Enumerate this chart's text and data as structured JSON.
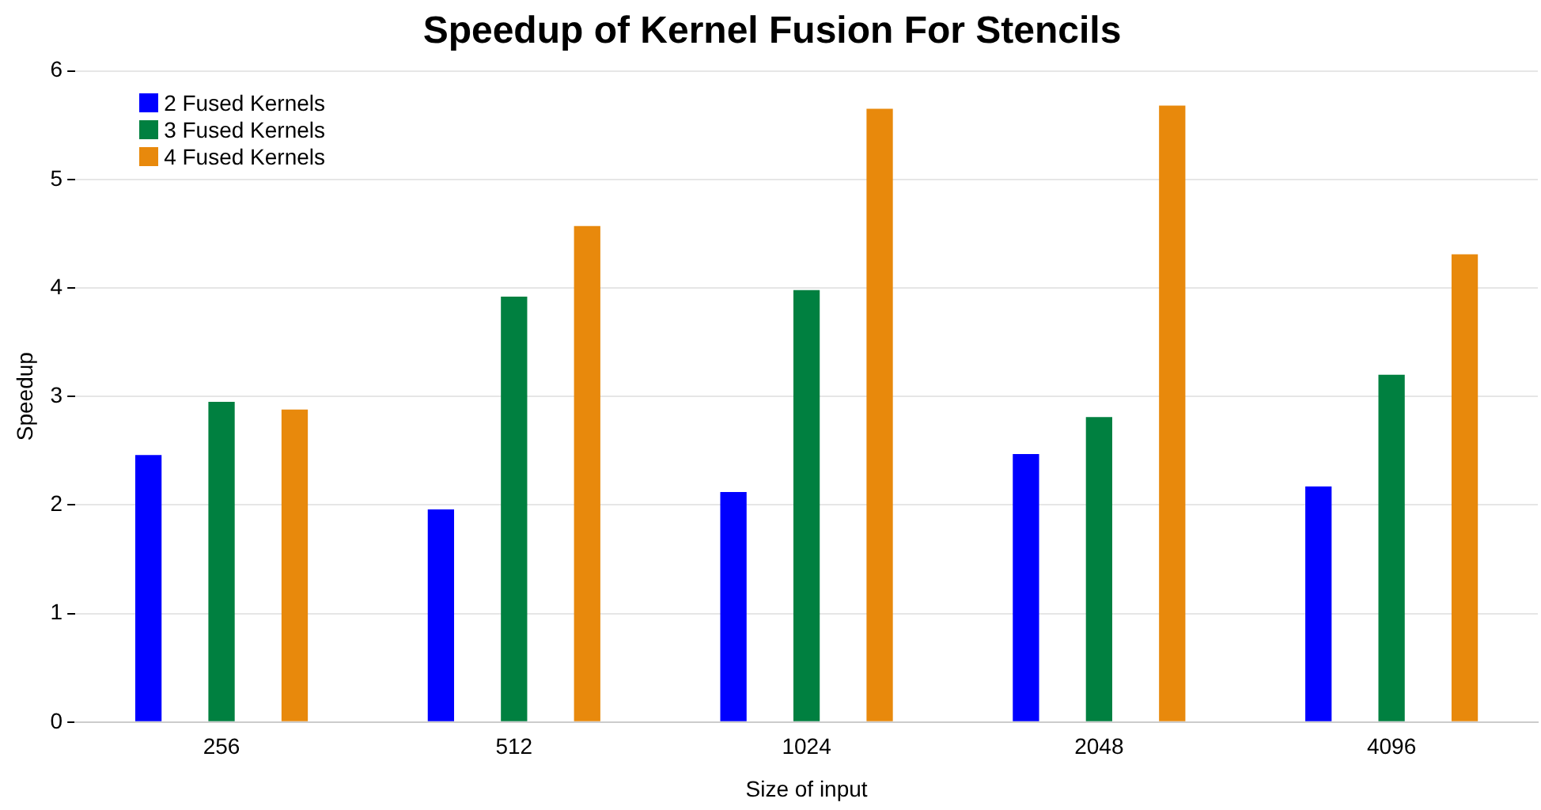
{
  "chart_data": {
    "type": "bar",
    "title": "Speedup of Kernel Fusion For Stencils",
    "xlabel": "Size of input",
    "ylabel": "Speedup",
    "categories": [
      "256",
      "512",
      "1024",
      "2048",
      "4096"
    ],
    "series": [
      {
        "name": "2 Fused Kernels",
        "color": "#0000ff",
        "values": [
          2.46,
          1.96,
          2.12,
          2.47,
          2.17
        ]
      },
      {
        "name": "3 Fused Kernels",
        "color": "#008040",
        "values": [
          2.95,
          3.92,
          3.98,
          2.81,
          3.2
        ]
      },
      {
        "name": "4 Fused Kernels",
        "color": "#e8890c",
        "values": [
          2.88,
          4.57,
          5.65,
          5.68,
          4.31
        ]
      }
    ],
    "ylim": [
      0,
      6
    ],
    "yticks": [
      0,
      1,
      2,
      3,
      4,
      5,
      6
    ],
    "grid": "y",
    "legend": "top left"
  }
}
